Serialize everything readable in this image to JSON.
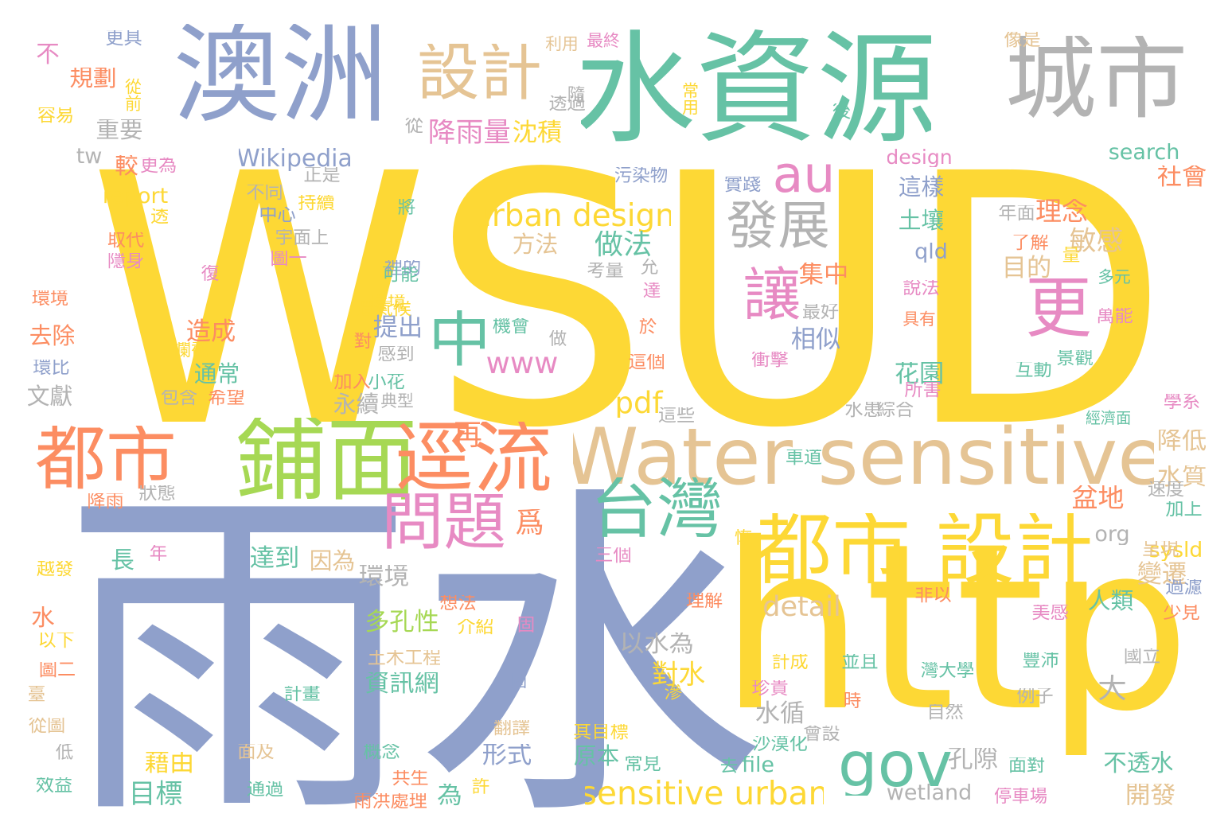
{
  "palette": {
    "yellow": "#fdd835",
    "blue": "#8fa0cb",
    "teal": "#66c2a5",
    "gray": "#b3b3b3",
    "tan": "#e5c494",
    "orange": "#fc8d62",
    "green": "#a6d854",
    "pink": "#e78ac3"
  },
  "words": [
    {
      "t": "WSUD",
      "c": "yellow"
    },
    {
      "t": "雨水",
      "c": "blue"
    },
    {
      "t": "http",
      "c": "yellow"
    },
    {
      "t": "水資源",
      "c": "teal"
    },
    {
      "t": "澳洲",
      "c": "blue"
    },
    {
      "t": "城市",
      "c": "gray"
    },
    {
      "t": "鋪面",
      "c": "green"
    },
    {
      "t": "逕流",
      "c": "orange"
    },
    {
      "t": "Water sensitive",
      "c": "tan"
    },
    {
      "t": "都市",
      "c": "orange"
    },
    {
      "t": "都市 設計",
      "c": "yellow"
    },
    {
      "t": "設計",
      "c": "tan"
    },
    {
      "t": "發展",
      "c": "gray"
    },
    {
      "t": "問題",
      "c": "pink"
    },
    {
      "t": "台灣",
      "c": "teal"
    },
    {
      "t": "gov",
      "c": "teal"
    },
    {
      "t": "讓",
      "c": "pink"
    },
    {
      "t": "更",
      "c": "pink"
    },
    {
      "t": "中",
      "c": "teal"
    },
    {
      "t": "au",
      "c": "pink"
    },
    {
      "t": "sensitive urban",
      "c": "yellow"
    },
    {
      "t": "urban design",
      "c": "yellow"
    },
    {
      "t": "Wikipedia",
      "c": "blue"
    },
    {
      "t": "detail",
      "c": "tan"
    },
    {
      "t": "www",
      "c": "pink"
    },
    {
      "t": "pdf",
      "c": "yellow"
    },
    {
      "t": "report",
      "c": "yellow"
    },
    {
      "t": "search",
      "c": "teal"
    },
    {
      "t": "wetland",
      "c": "gray"
    },
    {
      "t": "file",
      "c": "teal"
    },
    {
      "t": "org",
      "c": "gray"
    },
    {
      "t": "sysld",
      "c": "yellow"
    },
    {
      "t": "qld",
      "c": "blue"
    },
    {
      "t": "design",
      "c": "pink"
    },
    {
      "t": "tw",
      "c": "gray"
    },
    {
      "t": "降雨量",
      "c": "pink"
    },
    {
      "t": "沈積",
      "c": "yellow"
    },
    {
      "t": "重要",
      "c": "gray"
    },
    {
      "t": "規劃",
      "c": "orange"
    },
    {
      "t": "較",
      "c": "orange"
    },
    {
      "t": "更為",
      "c": "pink"
    },
    {
      "t": "方法",
      "c": "tan"
    },
    {
      "t": "做法",
      "c": "teal"
    },
    {
      "t": "土壤",
      "c": "teal"
    },
    {
      "t": "這樣",
      "c": "blue"
    },
    {
      "t": "理念",
      "c": "orange"
    },
    {
      "t": "敏感",
      "c": "tan"
    },
    {
      "t": "目的",
      "c": "tan"
    },
    {
      "t": "集中",
      "c": "orange"
    },
    {
      "t": "提出",
      "c": "blue"
    },
    {
      "t": "相似",
      "c": "blue"
    },
    {
      "t": "造成",
      "c": "orange"
    },
    {
      "t": "去除",
      "c": "orange"
    },
    {
      "t": "通常",
      "c": "teal"
    },
    {
      "t": "文獻",
      "c": "gray"
    },
    {
      "t": "永續",
      "c": "gray"
    },
    {
      "t": "花園",
      "c": "teal"
    },
    {
      "t": "盆地",
      "c": "orange"
    },
    {
      "t": "達到",
      "c": "teal"
    },
    {
      "t": "因為",
      "c": "tan"
    },
    {
      "t": "環境",
      "c": "gray"
    },
    {
      "t": "長",
      "c": "teal"
    },
    {
      "t": "多孔性",
      "c": "green"
    },
    {
      "t": "以水為",
      "c": "gray"
    },
    {
      "t": "對水",
      "c": "yellow"
    },
    {
      "t": "資訊網",
      "c": "teal"
    },
    {
      "t": "水循",
      "c": "gray"
    },
    {
      "t": "大",
      "c": "gray"
    },
    {
      "t": "人類",
      "c": "teal"
    },
    {
      "t": "變遷",
      "c": "tan"
    },
    {
      "t": "形式",
      "c": "blue"
    },
    {
      "t": "原本",
      "c": "teal"
    },
    {
      "t": "藉由",
      "c": "yellow"
    },
    {
      "t": "目標",
      "c": "teal"
    },
    {
      "t": "孔隙",
      "c": "gray"
    },
    {
      "t": "不透水",
      "c": "teal"
    },
    {
      "t": "開發",
      "c": "tan"
    },
    {
      "t": "降低",
      "c": "tan"
    },
    {
      "t": "水質",
      "c": "tan"
    },
    {
      "t": "社會",
      "c": "orange"
    },
    {
      "t": "水",
      "c": "orange"
    },
    {
      "t": "為",
      "c": "teal"
    },
    {
      "t": "再",
      "c": "orange"
    },
    {
      "t": "爲",
      "c": "orange"
    },
    {
      "t": "不",
      "c": "pink"
    },
    {
      "t": "更具",
      "c": "blue"
    },
    {
      "t": "利用",
      "c": "tan"
    },
    {
      "t": "最終",
      "c": "pink"
    },
    {
      "t": "像是",
      "c": "tan"
    },
    {
      "t": "從前",
      "c": "yellow"
    },
    {
      "t": "容易",
      "c": "yellow"
    },
    {
      "t": "常用",
      "c": "yellow"
    },
    {
      "t": "透過",
      "c": "gray"
    },
    {
      "t": "從",
      "c": "gray"
    },
    {
      "t": "後",
      "c": "teal"
    },
    {
      "t": "隨",
      "c": "gray"
    },
    {
      "t": "正是",
      "c": "gray"
    },
    {
      "t": "不同",
      "c": "gray"
    },
    {
      "t": "持續",
      "c": "yellow"
    },
    {
      "t": "中心",
      "c": "blue"
    },
    {
      "t": "透",
      "c": "yellow"
    },
    {
      "t": "取代",
      "c": "orange"
    },
    {
      "t": "宇面上",
      "c": "gray"
    },
    {
      "t": "隱身",
      "c": "pink"
    },
    {
      "t": "圖一",
      "c": "pink"
    },
    {
      "t": "將",
      "c": "teal"
    },
    {
      "t": "裡的",
      "c": "blue"
    },
    {
      "t": "可能",
      "c": "teal"
    },
    {
      "t": "污染物",
      "c": "blue"
    },
    {
      "t": "實踐",
      "c": "blue"
    },
    {
      "t": "年面",
      "c": "gray"
    },
    {
      "t": "了解",
      "c": "orange"
    },
    {
      "t": "量",
      "c": "yellow"
    },
    {
      "t": "多元",
      "c": "teal"
    },
    {
      "t": "萬能",
      "c": "pink"
    },
    {
      "t": "說法",
      "c": "pink"
    },
    {
      "t": "環境",
      "c": "orange"
    },
    {
      "t": "具有",
      "c": "orange"
    },
    {
      "t": "復",
      "c": "pink"
    },
    {
      "t": "考量",
      "c": "gray"
    },
    {
      "t": "允",
      "c": "gray"
    },
    {
      "t": "達",
      "c": "pink"
    },
    {
      "t": "最好",
      "c": "gray"
    },
    {
      "t": "環境",
      "c": "yellow"
    },
    {
      "t": "對",
      "c": "orange"
    },
    {
      "t": "機會",
      "c": "teal"
    },
    {
      "t": "於",
      "c": "orange"
    },
    {
      "t": "做",
      "c": "gray"
    },
    {
      "t": "遭氣候",
      "c": "yellow"
    },
    {
      "t": "感到",
      "c": "gray"
    },
    {
      "t": "這個",
      "c": "orange"
    },
    {
      "t": "衝擊",
      "c": "pink"
    },
    {
      "t": "互動",
      "c": "teal"
    },
    {
      "t": "景觀",
      "c": "teal"
    },
    {
      "t": "攔截",
      "c": "yellow"
    },
    {
      "t": "環比",
      "c": "blue"
    },
    {
      "t": "包含",
      "c": "gray"
    },
    {
      "t": "希望",
      "c": "orange"
    },
    {
      "t": "加入",
      "c": "orange"
    },
    {
      "t": "小花",
      "c": "teal"
    },
    {
      "t": "典型",
      "c": "gray"
    },
    {
      "t": "所害",
      "c": "pink"
    },
    {
      "t": "水患",
      "c": "gray"
    },
    {
      "t": "綜合",
      "c": "gray"
    },
    {
      "t": "經濟面",
      "c": "teal"
    },
    {
      "t": "學系",
      "c": "pink"
    },
    {
      "t": "這些",
      "c": "gray"
    },
    {
      "t": "車道",
      "c": "teal"
    },
    {
      "t": "速度",
      "c": "gray"
    },
    {
      "t": "加上",
      "c": "teal"
    },
    {
      "t": "降雨",
      "c": "orange"
    },
    {
      "t": "狀態",
      "c": "gray"
    },
    {
      "t": "恢",
      "c": "yellow"
    },
    {
      "t": "年",
      "c": "pink"
    },
    {
      "t": "三個",
      "c": "pink"
    },
    {
      "t": "呈現",
      "c": "tan"
    },
    {
      "t": "越發",
      "c": "yellow"
    },
    {
      "t": "理解",
      "c": "orange"
    },
    {
      "t": "非以",
      "c": "orange"
    },
    {
      "t": "過濾",
      "c": "blue"
    },
    {
      "t": "美感",
      "c": "pink"
    },
    {
      "t": "少見",
      "c": "orange"
    },
    {
      "t": "想法",
      "c": "orange"
    },
    {
      "t": "介紹",
      "c": "yellow"
    },
    {
      "t": "固",
      "c": "pink"
    },
    {
      "t": "以下",
      "c": "yellow"
    },
    {
      "t": "土木工程",
      "c": "tan"
    },
    {
      "t": "計成",
      "c": "yellow"
    },
    {
      "t": "並且",
      "c": "teal"
    },
    {
      "t": "灣大學",
      "c": "teal"
    },
    {
      "t": "豐沛",
      "c": "teal"
    },
    {
      "t": "國立",
      "c": "gray"
    },
    {
      "t": "圖二",
      "c": "orange"
    },
    {
      "t": "計畫",
      "c": "teal"
    },
    {
      "t": "圖",
      "c": "blue"
    },
    {
      "t": "滲",
      "c": "yellow"
    },
    {
      "t": "珍貴",
      "c": "pink"
    },
    {
      "t": "時",
      "c": "orange"
    },
    {
      "t": "自然",
      "c": "gray"
    },
    {
      "t": "例子",
      "c": "gray"
    },
    {
      "t": "臺",
      "c": "tan"
    },
    {
      "t": "從圖",
      "c": "tan"
    },
    {
      "t": "翻譯",
      "c": "tan"
    },
    {
      "t": "其目標",
      "c": "yellow"
    },
    {
      "t": "會設",
      "c": "gray"
    },
    {
      "t": "低",
      "c": "gray"
    },
    {
      "t": "概念",
      "c": "teal"
    },
    {
      "t": "面及",
      "c": "tan"
    },
    {
      "t": "沙漠化",
      "c": "teal"
    },
    {
      "t": "常見",
      "c": "teal"
    },
    {
      "t": "去",
      "c": "teal"
    },
    {
      "t": "面對",
      "c": "teal"
    },
    {
      "t": "效益",
      "c": "teal"
    },
    {
      "t": "共生",
      "c": "orange"
    },
    {
      "t": "通過",
      "c": "teal"
    },
    {
      "t": "許",
      "c": "yellow"
    },
    {
      "t": "雨洪處理",
      "c": "orange"
    },
    {
      "t": "停車場",
      "c": "pink"
    }
  ]
}
